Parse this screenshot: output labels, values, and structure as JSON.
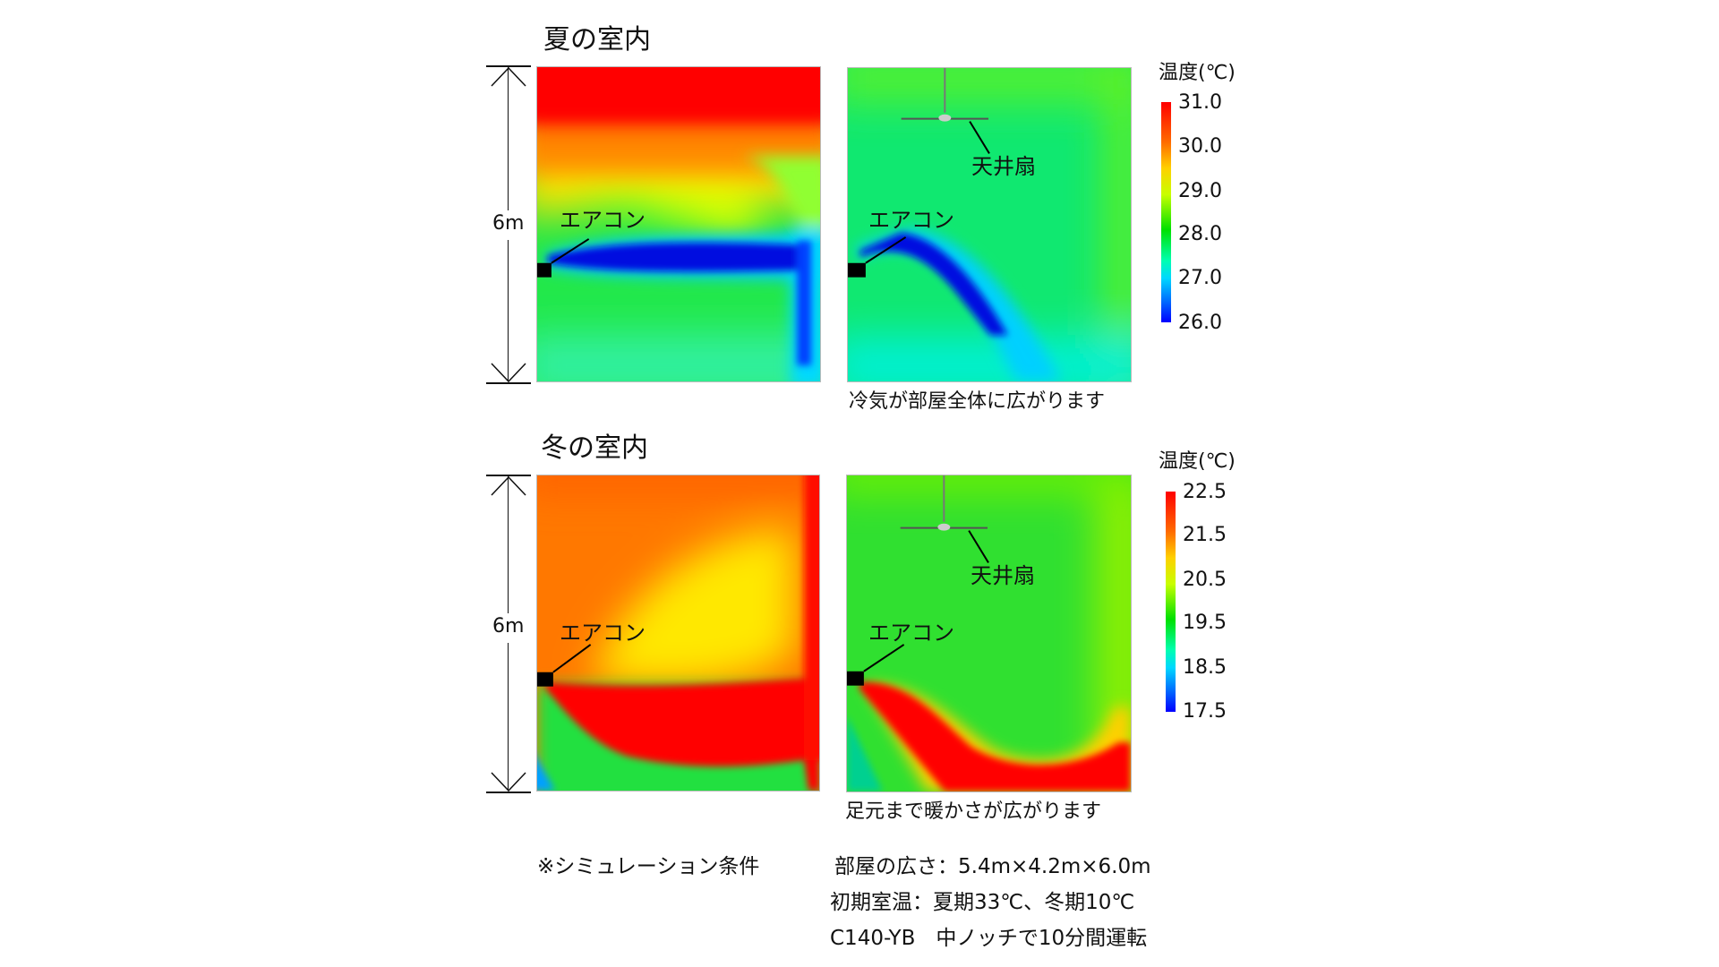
{
  "summer": {
    "title": "夏の室内",
    "dimension": "6m",
    "aircon_label": "エアコン",
    "fan_label": "天井扇",
    "caption": "冷気が部屋全体に広がります",
    "legend_title": "温度(℃)",
    "legend_ticks": [
      "31.0",
      "30.0",
      "29.0",
      "28.0",
      "27.0",
      "26.0"
    ]
  },
  "winter": {
    "title": "冬の室内",
    "dimension": "6m",
    "aircon_label": "エアコン",
    "fan_label": "天井扇",
    "caption": "足元まで暖かさが広がります",
    "legend_title": "温度(℃)",
    "legend_ticks": [
      "22.5",
      "21.5",
      "20.5",
      "19.5",
      "18.5",
      "17.5"
    ]
  },
  "notes": {
    "heading": "※シミュレーション条件",
    "lines": [
      "部屋の広さ：5.4m×4.2m×6.0m",
      "初期室温：夏期33℃、冬期10℃",
      "C140-YB　中ノッチで10分間運転"
    ]
  },
  "colors": {
    "hot": "#ff0000",
    "warm": "#ffd000",
    "mid": "#00e000",
    "cool": "#00ffff",
    "cold": "#0000ff"
  }
}
